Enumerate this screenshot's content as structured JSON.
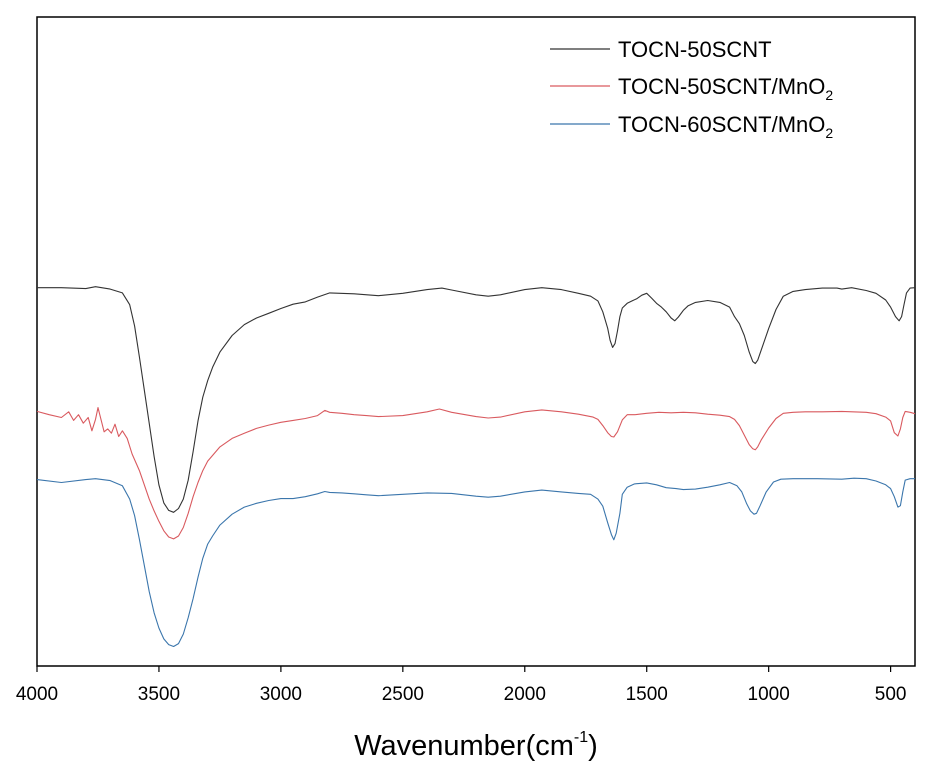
{
  "chart_data": {
    "type": "line",
    "xlabel": {
      "base": "Wavenumber(cm",
      "sup": "-1",
      "close": ")"
    },
    "ylabel": "",
    "xlim": [
      4000,
      400
    ],
    "ylim": [
      0,
      100
    ],
    "xticks": [
      4000,
      3500,
      3000,
      2500,
      2000,
      1500,
      1000,
      500
    ],
    "legend_position": "top-right",
    "series": [
      {
        "name": "TOCN-50SCNT",
        "name_base": "TOCN-50SCNT",
        "name_sub": "",
        "color": "#333333",
        "points": [
          [
            4000,
            75.6
          ],
          [
            3900,
            75.6
          ],
          [
            3800,
            75.4
          ],
          [
            3760,
            75.8
          ],
          [
            3700,
            75.3
          ],
          [
            3650,
            74.5
          ],
          [
            3620,
            72
          ],
          [
            3600,
            67.5
          ],
          [
            3580,
            61
          ],
          [
            3560,
            54
          ],
          [
            3540,
            47
          ],
          [
            3520,
            40
          ],
          [
            3500,
            34
          ],
          [
            3480,
            30.2
          ],
          [
            3460,
            28.6
          ],
          [
            3440,
            28.2
          ],
          [
            3420,
            29
          ],
          [
            3400,
            31
          ],
          [
            3380,
            35
          ],
          [
            3360,
            41
          ],
          [
            3340,
            47.5
          ],
          [
            3320,
            52.5
          ],
          [
            3300,
            56
          ],
          [
            3280,
            58.8
          ],
          [
            3250,
            62
          ],
          [
            3200,
            65.5
          ],
          [
            3150,
            67.8
          ],
          [
            3100,
            69.2
          ],
          [
            3050,
            70.2
          ],
          [
            3000,
            71.2
          ],
          [
            2950,
            72.1
          ],
          [
            2900,
            72.6
          ],
          [
            2850,
            73.6
          ],
          [
            2800,
            74.5
          ],
          [
            2700,
            74.3
          ],
          [
            2600,
            73.9
          ],
          [
            2500,
            74.4
          ],
          [
            2400,
            75.2
          ],
          [
            2340,
            75.5
          ],
          [
            2300,
            75.1
          ],
          [
            2200,
            74.1
          ],
          [
            2150,
            73.8
          ],
          [
            2100,
            74.1
          ],
          [
            2000,
            75.2
          ],
          [
            1930,
            75.6
          ],
          [
            1850,
            75.2
          ],
          [
            1780,
            74.4
          ],
          [
            1730,
            73.8
          ],
          [
            1700,
            72.8
          ],
          [
            1680,
            70.5
          ],
          [
            1660,
            67
          ],
          [
            1650,
            64.5
          ],
          [
            1640,
            63
          ],
          [
            1630,
            63.8
          ],
          [
            1620,
            66.5
          ],
          [
            1610,
            69.5
          ],
          [
            1600,
            71.3
          ],
          [
            1580,
            72.3
          ],
          [
            1560,
            72.8
          ],
          [
            1540,
            73.3
          ],
          [
            1520,
            74
          ],
          [
            1500,
            74.4
          ],
          [
            1480,
            73.4
          ],
          [
            1460,
            72.3
          ],
          [
            1440,
            71.5
          ],
          [
            1420,
            70.5
          ],
          [
            1400,
            69.2
          ],
          [
            1385,
            68.6
          ],
          [
            1370,
            69.4
          ],
          [
            1350,
            70.8
          ],
          [
            1330,
            71.8
          ],
          [
            1300,
            72.5
          ],
          [
            1250,
            72.9
          ],
          [
            1200,
            72.5
          ],
          [
            1160,
            71.5
          ],
          [
            1140,
            69.5
          ],
          [
            1120,
            68
          ],
          [
            1100,
            65.5
          ],
          [
            1080,
            62
          ],
          [
            1065,
            60
          ],
          [
            1055,
            59.6
          ],
          [
            1045,
            60.3
          ],
          [
            1030,
            62.5
          ],
          [
            1000,
            67
          ],
          [
            970,
            71
          ],
          [
            940,
            73.8
          ],
          [
            900,
            74.8
          ],
          [
            850,
            75.2
          ],
          [
            780,
            75.5
          ],
          [
            720,
            75.5
          ],
          [
            700,
            75.3
          ],
          [
            660,
            75.6
          ],
          [
            600,
            75
          ],
          [
            560,
            74.4
          ],
          [
            520,
            73
          ],
          [
            500,
            71.5
          ],
          [
            480,
            69.5
          ],
          [
            465,
            68.6
          ],
          [
            455,
            69.5
          ],
          [
            445,
            72
          ],
          [
            435,
            74.5
          ],
          [
            420,
            75.5
          ],
          [
            400,
            75.6
          ]
        ]
      },
      {
        "name": "TOCN-50SCNT/MnO2",
        "name_base": "TOCN-50SCNT/MnO",
        "name_sub": "2",
        "color": "#d95a5f",
        "points": [
          [
            4000,
            49.5
          ],
          [
            3950,
            48.8
          ],
          [
            3900,
            48.2
          ],
          [
            3870,
            49.4
          ],
          [
            3850,
            47.6
          ],
          [
            3830,
            48.8
          ],
          [
            3810,
            47
          ],
          [
            3790,
            48.2
          ],
          [
            3775,
            45.4
          ],
          [
            3760,
            47.8
          ],
          [
            3750,
            50.3
          ],
          [
            3740,
            48.3
          ],
          [
            3725,
            45.2
          ],
          [
            3710,
            45.8
          ],
          [
            3695,
            44.9
          ],
          [
            3680,
            46.8
          ],
          [
            3665,
            44.2
          ],
          [
            3650,
            45.4
          ],
          [
            3630,
            43.8
          ],
          [
            3610,
            40.5
          ],
          [
            3580,
            37
          ],
          [
            3560,
            34
          ],
          [
            3540,
            31
          ],
          [
            3520,
            28.5
          ],
          [
            3500,
            26.3
          ],
          [
            3480,
            24.3
          ],
          [
            3460,
            23
          ],
          [
            3440,
            22.6
          ],
          [
            3420,
            23.2
          ],
          [
            3400,
            25
          ],
          [
            3380,
            28
          ],
          [
            3360,
            31.5
          ],
          [
            3340,
            34.5
          ],
          [
            3320,
            37
          ],
          [
            3300,
            39
          ],
          [
            3250,
            42
          ],
          [
            3200,
            43.8
          ],
          [
            3150,
            44.9
          ],
          [
            3100,
            45.9
          ],
          [
            3050,
            46.6
          ],
          [
            3000,
            47.2
          ],
          [
            2950,
            47.6
          ],
          [
            2900,
            48
          ],
          [
            2850,
            48.6
          ],
          [
            2820,
            49.7
          ],
          [
            2800,
            49.3
          ],
          [
            2750,
            49.1
          ],
          [
            2700,
            48.8
          ],
          [
            2650,
            48.6
          ],
          [
            2600,
            48.4
          ],
          [
            2500,
            48.6
          ],
          [
            2400,
            49.4
          ],
          [
            2350,
            50
          ],
          [
            2300,
            49.3
          ],
          [
            2200,
            48.4
          ],
          [
            2150,
            48.1
          ],
          [
            2100,
            48.3
          ],
          [
            2000,
            49.4
          ],
          [
            1930,
            49.8
          ],
          [
            1850,
            49.4
          ],
          [
            1780,
            48.9
          ],
          [
            1720,
            48.3
          ],
          [
            1700,
            47.8
          ],
          [
            1680,
            46.5
          ],
          [
            1660,
            45
          ],
          [
            1645,
            44.2
          ],
          [
            1635,
            44.1
          ],
          [
            1620,
            45.2
          ],
          [
            1600,
            47.7
          ],
          [
            1580,
            48.8
          ],
          [
            1550,
            48.8
          ],
          [
            1500,
            49.1
          ],
          [
            1450,
            49.3
          ],
          [
            1400,
            49.2
          ],
          [
            1350,
            49.3
          ],
          [
            1300,
            49.2
          ],
          [
            1250,
            48.9
          ],
          [
            1200,
            48.7
          ],
          [
            1160,
            48.4
          ],
          [
            1140,
            47.8
          ],
          [
            1120,
            46.5
          ],
          [
            1100,
            44.5
          ],
          [
            1080,
            42.5
          ],
          [
            1065,
            41.6
          ],
          [
            1055,
            41.4
          ],
          [
            1045,
            42
          ],
          [
            1030,
            43.5
          ],
          [
            1000,
            46
          ],
          [
            970,
            48
          ],
          [
            940,
            49.1
          ],
          [
            900,
            49.3
          ],
          [
            850,
            49.4
          ],
          [
            780,
            49.4
          ],
          [
            700,
            49.5
          ],
          [
            600,
            49.3
          ],
          [
            560,
            49
          ],
          [
            520,
            48.3
          ],
          [
            500,
            47.5
          ],
          [
            485,
            45
          ],
          [
            470,
            44.3
          ],
          [
            460,
            45.8
          ],
          [
            450,
            48.2
          ],
          [
            440,
            49.5
          ],
          [
            420,
            49.3
          ],
          [
            400,
            49
          ]
        ]
      },
      {
        "name": "TOCN-60SCNT/MnO2",
        "name_base": "TOCN-60SCNT/MnO",
        "name_sub": "2",
        "color": "#3b76ac",
        "points": [
          [
            4000,
            35.1
          ],
          [
            3900,
            34.5
          ],
          [
            3800,
            35.1
          ],
          [
            3760,
            35.3
          ],
          [
            3700,
            34.9
          ],
          [
            3650,
            33.8
          ],
          [
            3620,
            31
          ],
          [
            3600,
            27.5
          ],
          [
            3580,
            22.5
          ],
          [
            3560,
            17
          ],
          [
            3540,
            11.5
          ],
          [
            3520,
            7
          ],
          [
            3500,
            3.8
          ],
          [
            3480,
            1.5
          ],
          [
            3460,
            0.3
          ],
          [
            3440,
            -0.1
          ],
          [
            3420,
            0.5
          ],
          [
            3400,
            2.5
          ],
          [
            3380,
            6
          ],
          [
            3360,
            10
          ],
          [
            3340,
            14.5
          ],
          [
            3320,
            18.5
          ],
          [
            3300,
            21.5
          ],
          [
            3280,
            23.2
          ],
          [
            3250,
            25.5
          ],
          [
            3200,
            27.8
          ],
          [
            3150,
            29.3
          ],
          [
            3100,
            30.1
          ],
          [
            3050,
            30.7
          ],
          [
            3000,
            31.1
          ],
          [
            2950,
            31.1
          ],
          [
            2900,
            31.5
          ],
          [
            2850,
            32.1
          ],
          [
            2820,
            32.6
          ],
          [
            2800,
            32.4
          ],
          [
            2750,
            32.3
          ],
          [
            2700,
            32.1
          ],
          [
            2650,
            31.9
          ],
          [
            2600,
            31.7
          ],
          [
            2500,
            32
          ],
          [
            2400,
            32.3
          ],
          [
            2300,
            32.2
          ],
          [
            2200,
            31.6
          ],
          [
            2150,
            31.4
          ],
          [
            2100,
            31.6
          ],
          [
            2000,
            32.5
          ],
          [
            1930,
            32.9
          ],
          [
            1850,
            32.5
          ],
          [
            1780,
            32.2
          ],
          [
            1730,
            32
          ],
          [
            1700,
            31
          ],
          [
            1680,
            29.5
          ],
          [
            1660,
            26
          ],
          [
            1645,
            23.5
          ],
          [
            1635,
            22.4
          ],
          [
            1625,
            23.8
          ],
          [
            1610,
            28
          ],
          [
            1600,
            32
          ],
          [
            1580,
            33.5
          ],
          [
            1550,
            34.2
          ],
          [
            1500,
            34.4
          ],
          [
            1460,
            34
          ],
          [
            1420,
            33.4
          ],
          [
            1380,
            33.2
          ],
          [
            1350,
            33
          ],
          [
            1300,
            33.1
          ],
          [
            1250,
            33.5
          ],
          [
            1200,
            34
          ],
          [
            1160,
            34.5
          ],
          [
            1130,
            33.8
          ],
          [
            1110,
            32.5
          ],
          [
            1090,
            30
          ],
          [
            1075,
            28.5
          ],
          [
            1060,
            27.8
          ],
          [
            1050,
            28
          ],
          [
            1035,
            29.6
          ],
          [
            1010,
            32.5
          ],
          [
            980,
            34.6
          ],
          [
            950,
            35.2
          ],
          [
            900,
            35.3
          ],
          [
            850,
            35.3
          ],
          [
            800,
            35.3
          ],
          [
            700,
            35.2
          ],
          [
            650,
            35.4
          ],
          [
            600,
            35.3
          ],
          [
            560,
            34.8
          ],
          [
            520,
            34
          ],
          [
            500,
            33.2
          ],
          [
            485,
            31.5
          ],
          [
            470,
            29.3
          ],
          [
            460,
            29.6
          ],
          [
            450,
            32.5
          ],
          [
            440,
            35
          ],
          [
            420,
            35.3
          ],
          [
            400,
            35.3
          ]
        ]
      }
    ]
  }
}
